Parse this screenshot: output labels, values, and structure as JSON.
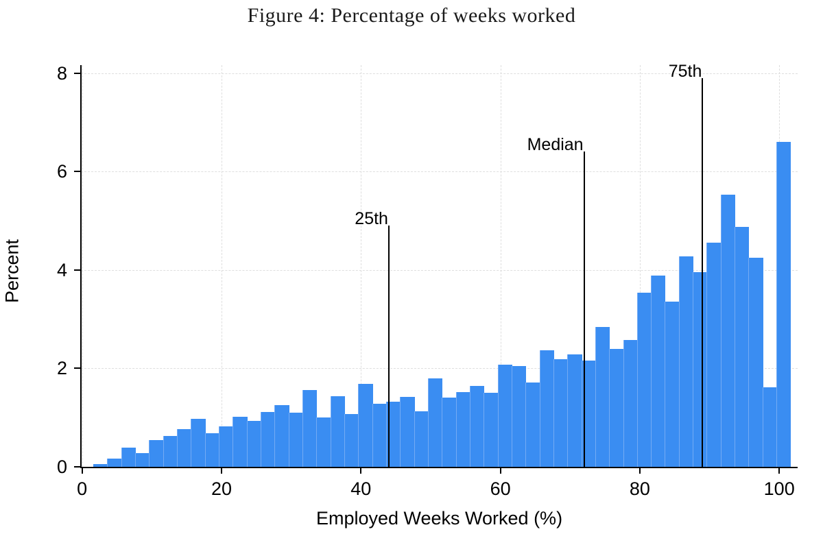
{
  "title": "Figure 4: Percentage of weeks worked",
  "chart_data": {
    "type": "bar",
    "subtype": "histogram",
    "title": "Figure 4: Percentage of weeks worked",
    "xlabel": "Employed Weeks Worked (%)",
    "ylabel": "Percent",
    "xlim": [
      0,
      102.5
    ],
    "ylim": [
      0,
      8
    ],
    "x_ticks": [
      0,
      20,
      40,
      60,
      80,
      100
    ],
    "y_ticks": [
      0,
      2,
      4,
      6,
      8
    ],
    "grid": true,
    "legend": false,
    "bin_width": 2,
    "bin_starts": [
      2,
      4,
      6,
      8,
      10,
      12,
      14,
      16,
      18,
      20,
      22,
      24,
      26,
      28,
      30,
      32,
      34,
      36,
      38,
      40,
      42,
      44,
      46,
      48,
      50,
      52,
      54,
      56,
      58,
      60,
      62,
      64,
      66,
      68,
      70,
      72,
      74,
      76,
      78,
      80,
      82,
      84,
      86,
      88,
      90,
      92,
      94,
      96,
      98,
      100
    ],
    "values": [
      0.05,
      0.17,
      0.39,
      0.28,
      0.55,
      0.62,
      0.76,
      0.97,
      0.68,
      0.82,
      1.01,
      0.93,
      1.11,
      1.26,
      1.1,
      1.56,
      1.0,
      1.44,
      1.07,
      1.69,
      1.28,
      1.32,
      1.42,
      1.13,
      1.8,
      1.41,
      1.52,
      1.64,
      1.51,
      2.07,
      2.05,
      1.71,
      2.37,
      2.19,
      2.28,
      2.16,
      2.84,
      2.39,
      2.58,
      3.54,
      3.89,
      3.36,
      4.27,
      3.96,
      4.55,
      5.53,
      4.87,
      4.25,
      1.62,
      6.6
    ],
    "annotations": [
      {
        "label": "25th",
        "x": 44,
        "line_top_value": 4.9
      },
      {
        "label": "Median",
        "x": 72,
        "line_top_value": 6.4
      },
      {
        "label": "75th",
        "x": 89,
        "line_top_value": 7.9
      }
    ],
    "colors": {
      "bar_fill": "#3a8df2",
      "bar_separator": "#74abf4",
      "gridline": "#dedede",
      "axis": "#000000",
      "text": "#000000"
    }
  }
}
